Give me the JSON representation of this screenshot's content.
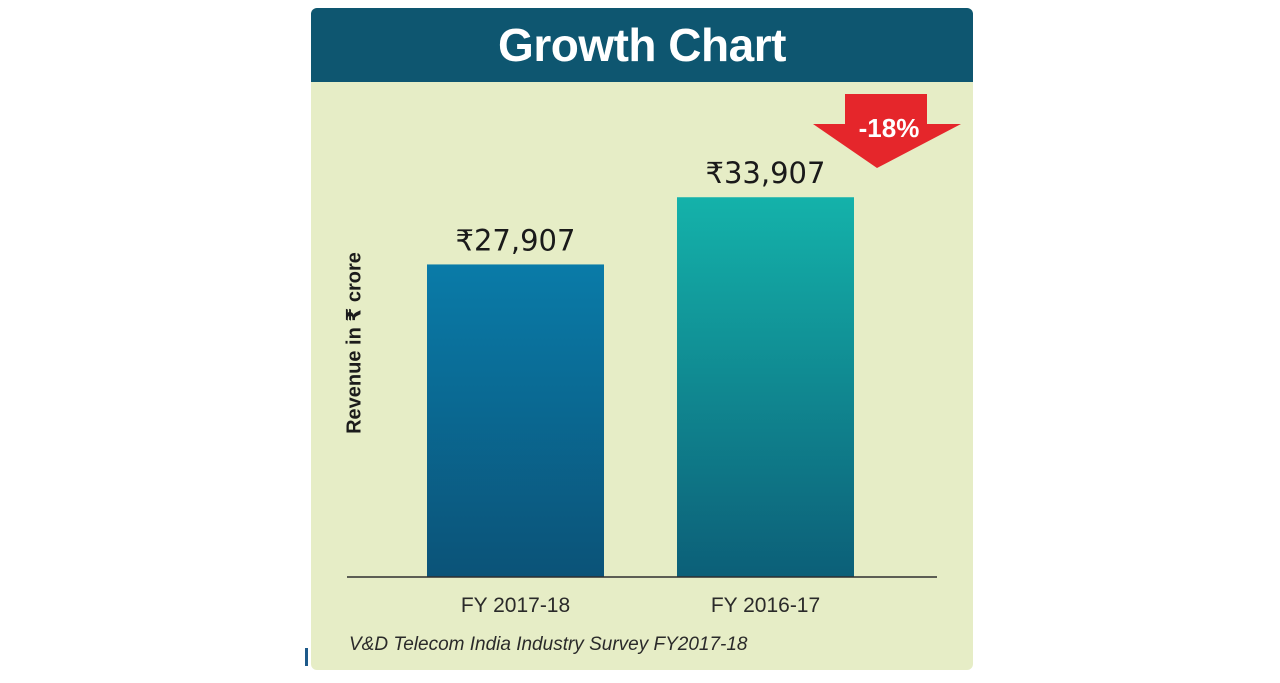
{
  "colors": {
    "title_bar": "#0e5670",
    "panel_bg": "#e6edc6",
    "bar_1_top": "#0a7ba8",
    "bar_1_bottom": "#0b5378",
    "bar_2_top": "#14b2aa",
    "bar_2_bottom": "#0c5f78",
    "arrow": "#e5262b"
  },
  "chart_data": {
    "type": "bar",
    "title": "Growth Chart",
    "ylabel": "Revenue in ₹ crore",
    "categories": [
      "FY 2017-18",
      "FY 2016-17"
    ],
    "values": [
      27907,
      33907
    ],
    "value_labels": [
      "₹27,907",
      "₹33,907"
    ],
    "ylim": [
      0,
      40000
    ],
    "grid": false,
    "annotation": {
      "text": "-18%",
      "icon": "down-arrow-icon"
    },
    "source": "V&D Telecom India Industry Survey FY2017-18"
  }
}
